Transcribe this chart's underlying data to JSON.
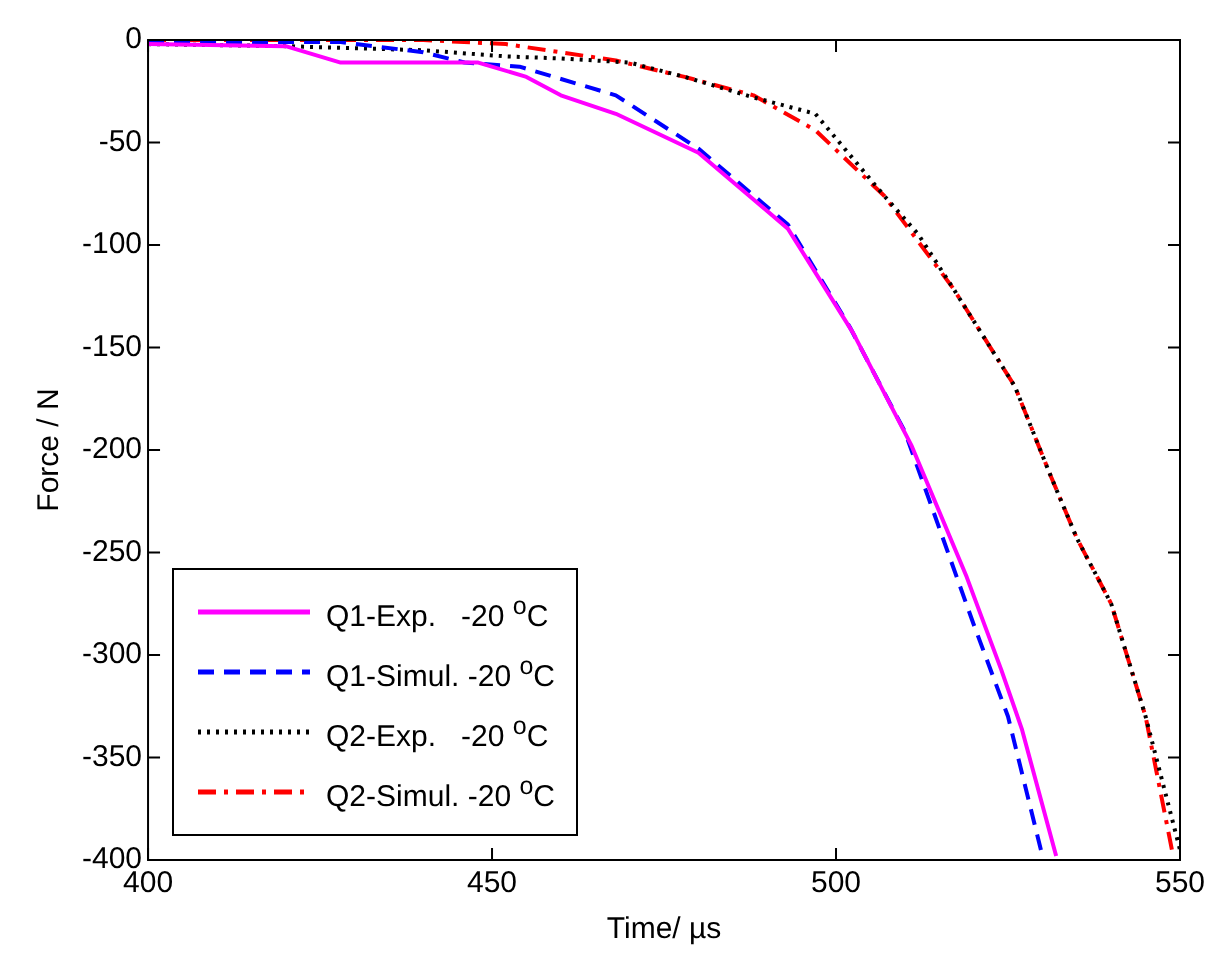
{
  "chart_data": {
    "type": "line",
    "xlabel": "Time/ µs",
    "ylabel": "Force / N",
    "xlim": [
      400,
      550
    ],
    "xticks": [
      400,
      450,
      500,
      550
    ],
    "ylim": [
      -400,
      0
    ],
    "yticks": [
      0,
      -50,
      -100,
      -150,
      -200,
      -250,
      -300,
      -350,
      -400
    ],
    "grid": false,
    "legend": "bottom left",
    "marker": "none",
    "series": [
      {
        "name": "Q1-Exp.   -20 $^{o}$C",
        "color": "#ff00ff",
        "line_style": "solid",
        "x": [
          400,
          420,
          428,
          435,
          448,
          455,
          460,
          468,
          480,
          493,
          502.5,
          511,
          519,
          524,
          527,
          532
        ],
        "values": [
          -2,
          -3,
          -11,
          -11,
          -11,
          -18,
          -27,
          -36,
          -55,
          -92,
          -143,
          -198,
          -262,
          -307,
          -336,
          -398
        ]
      },
      {
        "name": "Q1-Simul. -20 $^{o}$C",
        "color": "#0000ff",
        "line_style": "dashed",
        "x": [
          400,
          428,
          440,
          446,
          454,
          468,
          480,
          493,
          502,
          510,
          520,
          525,
          530
        ],
        "values": [
          -1,
          -1,
          -6,
          -11,
          -13,
          -27,
          -53,
          -90,
          -140,
          -191,
          -285,
          -330,
          -398
        ]
      },
      {
        "name": "Q2-Exp.   -20 $^{o}$C",
        "color": "#000000",
        "line_style": "dotted",
        "x": [
          400,
          420,
          440,
          452,
          460,
          470,
          478,
          488,
          497,
          507,
          512,
          517,
          526,
          531,
          535,
          540,
          545,
          550
        ],
        "values": [
          -2,
          -3,
          -5,
          -8,
          -9,
          -11,
          -18,
          -28,
          -36,
          -76,
          -95,
          -121,
          -169,
          -211,
          -243,
          -275,
          -330,
          -395
        ]
      },
      {
        "name": "Q2-Simul. -20 $^{o}$C",
        "color": "#ff0000",
        "line_style": "dashdot",
        "x": [
          400,
          440,
          452,
          468,
          478,
          488,
          497,
          507,
          517,
          526,
          531,
          535,
          540,
          545,
          549
        ],
        "values": [
          0,
          0,
          -2,
          -10,
          -18,
          -27,
          -44,
          -76,
          -121,
          -169,
          -211,
          -243,
          -275,
          -330,
          -398
        ]
      }
    ]
  }
}
